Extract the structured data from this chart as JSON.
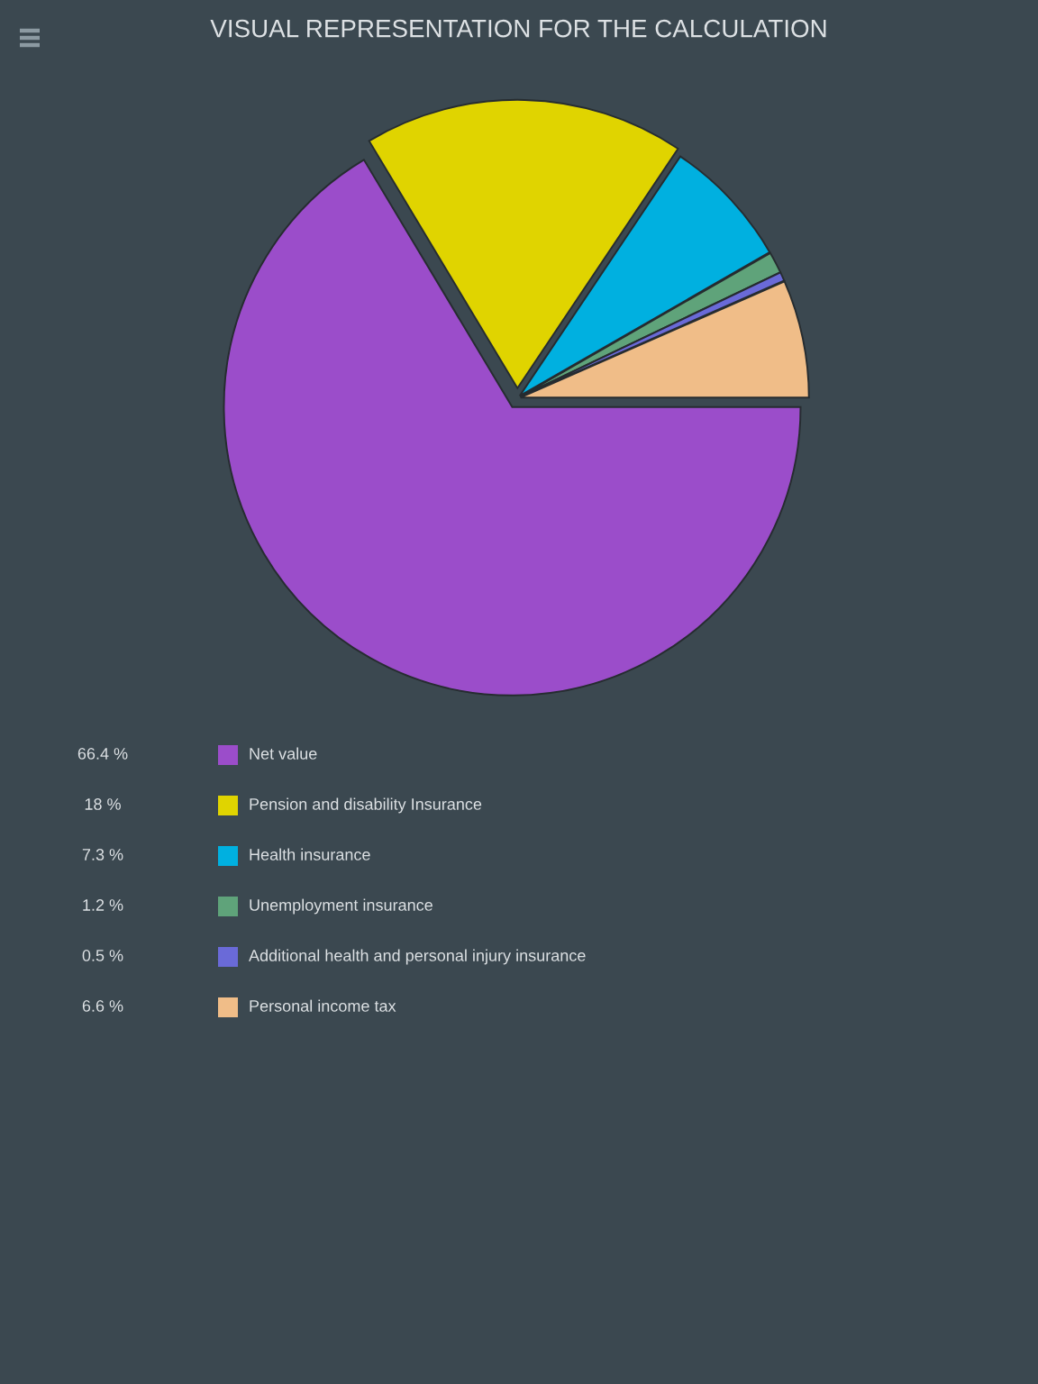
{
  "chart_data": {
    "type": "pie",
    "title": "VISUAL REPRESENTATION FOR THE CALCULATION",
    "categories": [
      "Net value",
      "Pension and disability Insurance",
      "Health insurance",
      "Unemployment insurance",
      "Additional health and personal injury insurance",
      "Personal income tax"
    ],
    "values": [
      66.4,
      18,
      7.3,
      1.2,
      0.5,
      6.6
    ],
    "value_labels": [
      "66.4 %",
      "18 %",
      "7.3 %",
      "1.2 %",
      "0.5 %",
      "6.6 %"
    ],
    "colors": [
      "#9b4dca",
      "#e0d400",
      "#00b0e0",
      "#5fa37a",
      "#6a6ad8",
      "#f0bd88"
    ],
    "legend": "bottom"
  }
}
